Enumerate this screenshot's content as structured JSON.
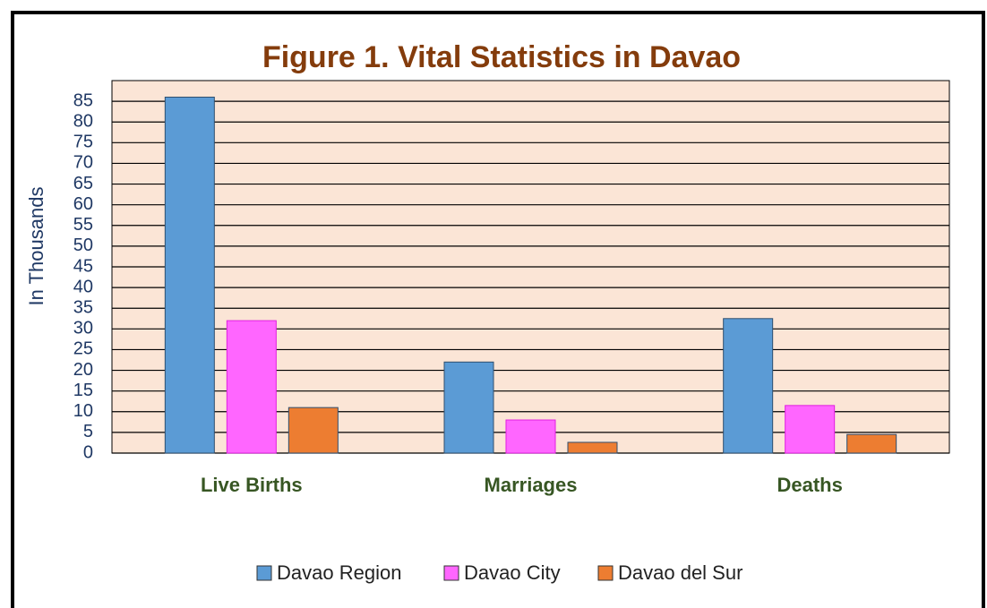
{
  "chart_data": {
    "type": "bar",
    "title": "Figure 1. Vital Statistics in Davao",
    "y_label": "In Thousands",
    "categories": [
      "Live Births",
      "Marriages",
      "Deaths"
    ],
    "series": [
      {
        "name": "Davao Region",
        "color": "#5b9bd5",
        "values": [
          86,
          22,
          32.5
        ]
      },
      {
        "name": "Davao City",
        "color": "#ff66ff",
        "values": [
          32,
          8,
          11.5
        ]
      },
      {
        "name": "Davao del Sur",
        "color": "#ed7d31",
        "values": [
          11,
          2.6,
          4.5
        ]
      }
    ],
    "ylim": [
      0,
      90
    ],
    "yticks": [
      0,
      5,
      10,
      15,
      20,
      25,
      30,
      35,
      40,
      45,
      50,
      55,
      60,
      65,
      70,
      75,
      80,
      85
    ],
    "grid": true,
    "legend": "bottom"
  }
}
